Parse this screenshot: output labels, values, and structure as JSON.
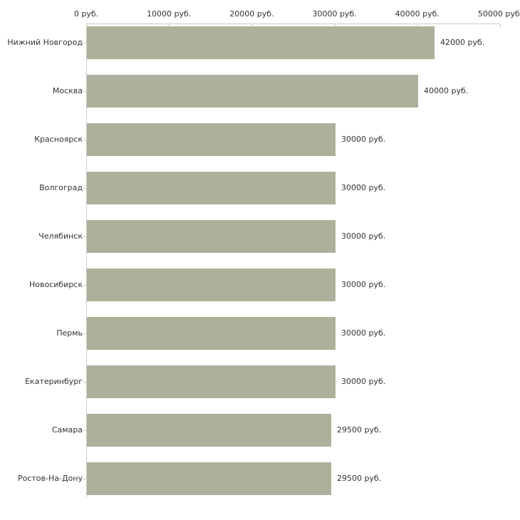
{
  "chart_data": {
    "type": "bar",
    "orientation": "horizontal",
    "unit_suffix": " руб.",
    "categories": [
      "Нижний Новгород",
      "Москва",
      "Красноярск",
      "Волгоград",
      "Челябинск",
      "Новосибирск",
      "Пермь",
      "Екатеринбург",
      "Самара",
      "Ростов-На-Дону"
    ],
    "values": [
      42000,
      40000,
      30000,
      30000,
      30000,
      30000,
      30000,
      30000,
      29500,
      29500
    ],
    "value_labels": [
      "42000 руб.",
      "40000 руб.",
      "30000 руб.",
      "30000 руб.",
      "30000 руб.",
      "30000 руб.",
      "30000 руб.",
      "30000 руб.",
      "29500 руб.",
      "29500 руб."
    ],
    "xlim": [
      0,
      50000
    ],
    "x_ticks": [
      0,
      10000,
      20000,
      30000,
      40000,
      50000
    ],
    "x_tick_labels": [
      "0 руб.",
      "10000 руб.",
      "20000 руб.",
      "30000 руб.",
      "40000 руб.",
      "50000 руб."
    ],
    "axis_position": "top",
    "grid": false,
    "legend": "none"
  },
  "colors": {
    "bar_fill": "#abb19a",
    "axis_line": "#cbcbcb",
    "tick_mark": "#c9ceba",
    "text": "#333333",
    "background": "#ffffff"
  }
}
